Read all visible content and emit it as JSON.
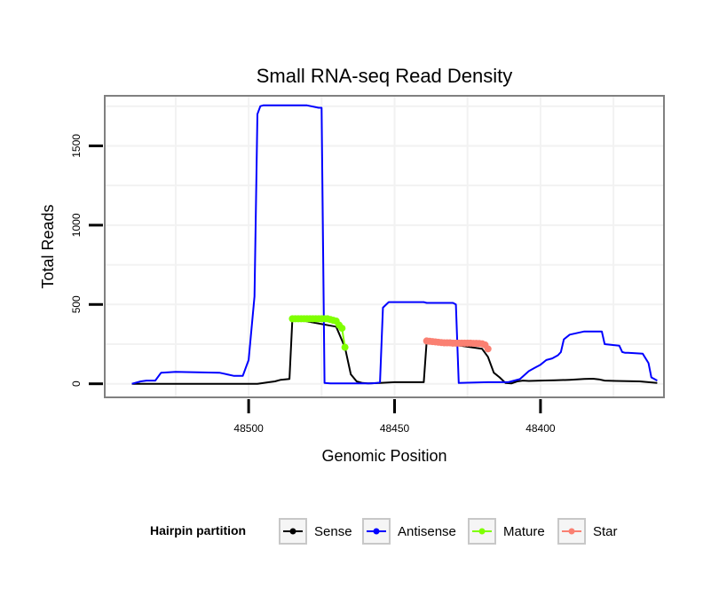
{
  "chart_data": {
    "type": "line",
    "title": "Small RNA-seq Read Density",
    "xlabel": "Genomic Position",
    "ylabel": "Total Reads",
    "x_reversed": true,
    "xlim": [
      48549,
      48358
    ],
    "ylim": [
      -80,
      1810
    ],
    "x_ticks": [
      48500,
      48450,
      48400
    ],
    "x_tick_labels": [
      "48500",
      "48450",
      "48400"
    ],
    "y_ticks": [
      0,
      500,
      1000,
      1500
    ],
    "y_tick_labels": [
      "0",
      "500",
      "1000",
      "1500"
    ],
    "grid": true,
    "legend": {
      "title": "Hairpin partition",
      "position": "bottom",
      "entries": [
        {
          "name": "Sense",
          "color": "#000000"
        },
        {
          "name": "Antisense",
          "color": "#0000ff"
        },
        {
          "name": "Mature",
          "color": "#7fff00"
        },
        {
          "name": "Star",
          "color": "#fa8072"
        }
      ]
    },
    "series": [
      {
        "name": "Sense",
        "color": "#000000",
        "markers": false,
        "x": [
          48540,
          48497,
          48493,
          48491,
          48489,
          48486,
          48485,
          48470,
          48467,
          48465,
          48463,
          48461,
          48459,
          48455,
          48450,
          48445,
          48440,
          48439,
          48420,
          48418,
          48416,
          48414,
          48412,
          48410,
          48408,
          48406,
          48404,
          48400,
          48395,
          48390,
          48385,
          48382,
          48380,
          48378,
          48374,
          48366,
          48360
        ],
        "y": [
          0,
          0,
          10,
          15,
          25,
          30,
          410,
          360,
          230,
          60,
          15,
          5,
          3,
          5,
          10,
          10,
          10,
          270,
          220,
          170,
          70,
          40,
          5,
          2,
          15,
          20,
          18,
          20,
          22,
          25,
          30,
          32,
          28,
          20,
          18,
          15,
          5
        ]
      },
      {
        "name": "Antisense",
        "color": "#0000ff",
        "markers": false,
        "x": [
          48540,
          48537,
          48535,
          48532,
          48530,
          48525,
          48510,
          48505,
          48502,
          48500,
          48498,
          48497,
          48496,
          48495,
          48492,
          48480,
          48476,
          48475,
          48474,
          48472,
          48465,
          48458,
          48456,
          48455,
          48454,
          48452,
          48440,
          48439,
          48430,
          48429,
          48428,
          48418,
          48416,
          48411,
          48410,
          48407,
          48404,
          48402,
          48400,
          48398,
          48396,
          48394,
          48393,
          48392,
          48390,
          48385,
          48380,
          48379,
          48378,
          48373,
          48372,
          48371,
          48370,
          48365,
          48363,
          48362,
          48361,
          48360
        ],
        "y": [
          0,
          15,
          20,
          20,
          70,
          75,
          70,
          50,
          50,
          150,
          550,
          1700,
          1750,
          1755,
          1755,
          1755,
          1740,
          1740,
          5,
          2,
          2,
          2,
          5,
          10,
          480,
          515,
          515,
          510,
          510,
          500,
          5,
          10,
          10,
          10,
          15,
          30,
          80,
          100,
          120,
          150,
          160,
          180,
          200,
          280,
          310,
          330,
          330,
          330,
          250,
          240,
          200,
          195,
          195,
          190,
          130,
          40,
          30,
          20
        ]
      },
      {
        "name": "Mature",
        "color": "#7fff00",
        "markers": true,
        "x": [
          48485,
          48484,
          48483,
          48482,
          48481,
          48480,
          48479,
          48478,
          48477,
          48476,
          48475,
          48474,
          48473,
          48472,
          48471,
          48470,
          48469,
          48468,
          48467
        ],
        "y": [
          410,
          410,
          410,
          410,
          410,
          410,
          410,
          410,
          410,
          410,
          410,
          410,
          410,
          405,
          400,
          395,
          370,
          350,
          230
        ]
      },
      {
        "name": "Star",
        "color": "#fa8072",
        "markers": true,
        "x": [
          48439,
          48438,
          48437,
          48436,
          48435,
          48434,
          48433,
          48432,
          48431,
          48430,
          48429,
          48428,
          48427,
          48426,
          48425,
          48424,
          48423,
          48422,
          48421,
          48420,
          48419,
          48418
        ],
        "y": [
          270,
          268,
          266,
          264,
          262,
          260,
          258,
          258,
          258,
          256,
          256,
          256,
          256,
          256,
          256,
          256,
          255,
          255,
          254,
          252,
          245,
          220
        ]
      }
    ]
  }
}
